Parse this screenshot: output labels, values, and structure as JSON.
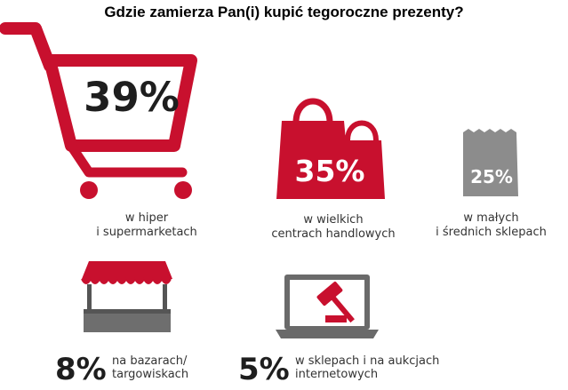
{
  "colors": {
    "red": "#c8102e",
    "gray": "#8c8c8c",
    "dark": "#555555",
    "text": "#1e1e1e"
  },
  "chart_data": {
    "type": "infographic",
    "title": "Gdzie zamierza Pan(i) kupić tegoroczne prezenty?",
    "items": [
      {
        "value": "39%",
        "label_lines": [
          "w hiper",
          "i supermarketach"
        ],
        "icon": "shopping-cart-icon"
      },
      {
        "value": "35%",
        "label_lines": [
          "w wielkich",
          "centrach handlowych"
        ],
        "icon": "shopping-bags-icon"
      },
      {
        "value": "25%",
        "label_lines": [
          "w małych",
          "i średnich sklepach"
        ],
        "icon": "receipt-icon"
      },
      {
        "value": "8%",
        "label_lines": [
          "na bazarach/",
          "targowiskach"
        ],
        "icon": "market-stall-icon"
      },
      {
        "value": "5%",
        "label_lines": [
          "w sklepach i na aukcjach",
          "internetowych"
        ],
        "icon": "laptop-gavel-icon"
      }
    ]
  }
}
